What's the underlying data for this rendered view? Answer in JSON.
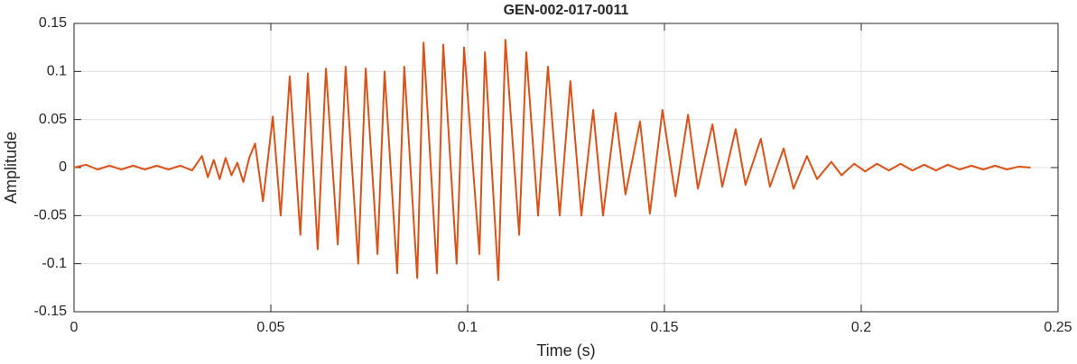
{
  "chart_data": {
    "type": "line",
    "title": "GEN-002-017-0011",
    "x_label": "Time (s)",
    "y_label": "Amplitude",
    "xlim": [
      0,
      0.25
    ],
    "ylim": [
      -0.15,
      0.15
    ],
    "xticks": [
      0,
      0.05,
      0.1,
      0.15,
      0.2,
      0.25
    ],
    "yticks": [
      -0.15,
      -0.1,
      -0.05,
      0,
      0.05,
      0.1,
      0.15
    ],
    "grid": true,
    "series": [
      {
        "color": "#D95319",
        "x": [
          0,
          0.003,
          0.006,
          0.009,
          0.012,
          0.015,
          0.018,
          0.021,
          0.024,
          0.027,
          0.03,
          0.0325,
          0.034,
          0.0355,
          0.037,
          0.0385,
          0.04,
          0.0415,
          0.043,
          0.0445,
          0.046,
          0.048,
          0.0505,
          0.0525,
          0.0548,
          0.0575,
          0.0594,
          0.0619,
          0.064,
          0.067,
          0.069,
          0.0722,
          0.0741,
          0.0771,
          0.0789,
          0.0821,
          0.0839,
          0.0872,
          0.0888,
          0.0922,
          0.0938,
          0.0972,
          0.0991,
          0.103,
          0.1044,
          0.1078,
          0.1096,
          0.1131,
          0.1149,
          0.1179,
          0.1204,
          0.1234,
          0.1261,
          0.1289,
          0.1319,
          0.1344,
          0.1376,
          0.1401,
          0.1438,
          0.1463,
          0.1495,
          0.1528,
          0.156,
          0.1585,
          0.1622,
          0.1647,
          0.1681,
          0.1706,
          0.1745,
          0.1768,
          0.1803,
          0.1828,
          0.1862,
          0.1888,
          0.1924,
          0.195,
          0.1982,
          0.201,
          0.204,
          0.207,
          0.21,
          0.213,
          0.216,
          0.219,
          0.222,
          0.225,
          0.228,
          0.231,
          0.234,
          0.237,
          0.24,
          0.243
        ],
        "values": [
          0,
          0.003,
          -0.002,
          0.002,
          -0.002,
          0.002,
          -0.002,
          0.002,
          -0.002,
          0.002,
          -0.003,
          0.012,
          -0.01,
          0.008,
          -0.012,
          0.01,
          -0.008,
          0.005,
          -0.015,
          0.01,
          0.025,
          -0.035,
          0.053,
          -0.05,
          0.095,
          -0.07,
          0.098,
          -0.085,
          0.103,
          -0.08,
          0.105,
          -0.1,
          0.103,
          -0.09,
          0.1,
          -0.11,
          0.105,
          -0.115,
          0.13,
          -0.11,
          0.128,
          -0.1,
          0.125,
          -0.09,
          0.12,
          -0.117,
          0.133,
          -0.07,
          0.12,
          -0.05,
          0.105,
          -0.05,
          0.09,
          -0.05,
          0.06,
          -0.05,
          0.057,
          -0.028,
          0.048,
          -0.048,
          0.06,
          -0.03,
          0.055,
          -0.022,
          0.045,
          -0.02,
          0.04,
          -0.018,
          0.03,
          -0.02,
          0.02,
          -0.022,
          0.012,
          -0.012,
          0.006,
          -0.008,
          0.004,
          -0.004,
          0.004,
          -0.003,
          0.004,
          -0.003,
          0.003,
          -0.003,
          0.003,
          -0.002,
          0.002,
          -0.002,
          0.002,
          -0.002,
          0.001,
          0
        ]
      }
    ]
  }
}
